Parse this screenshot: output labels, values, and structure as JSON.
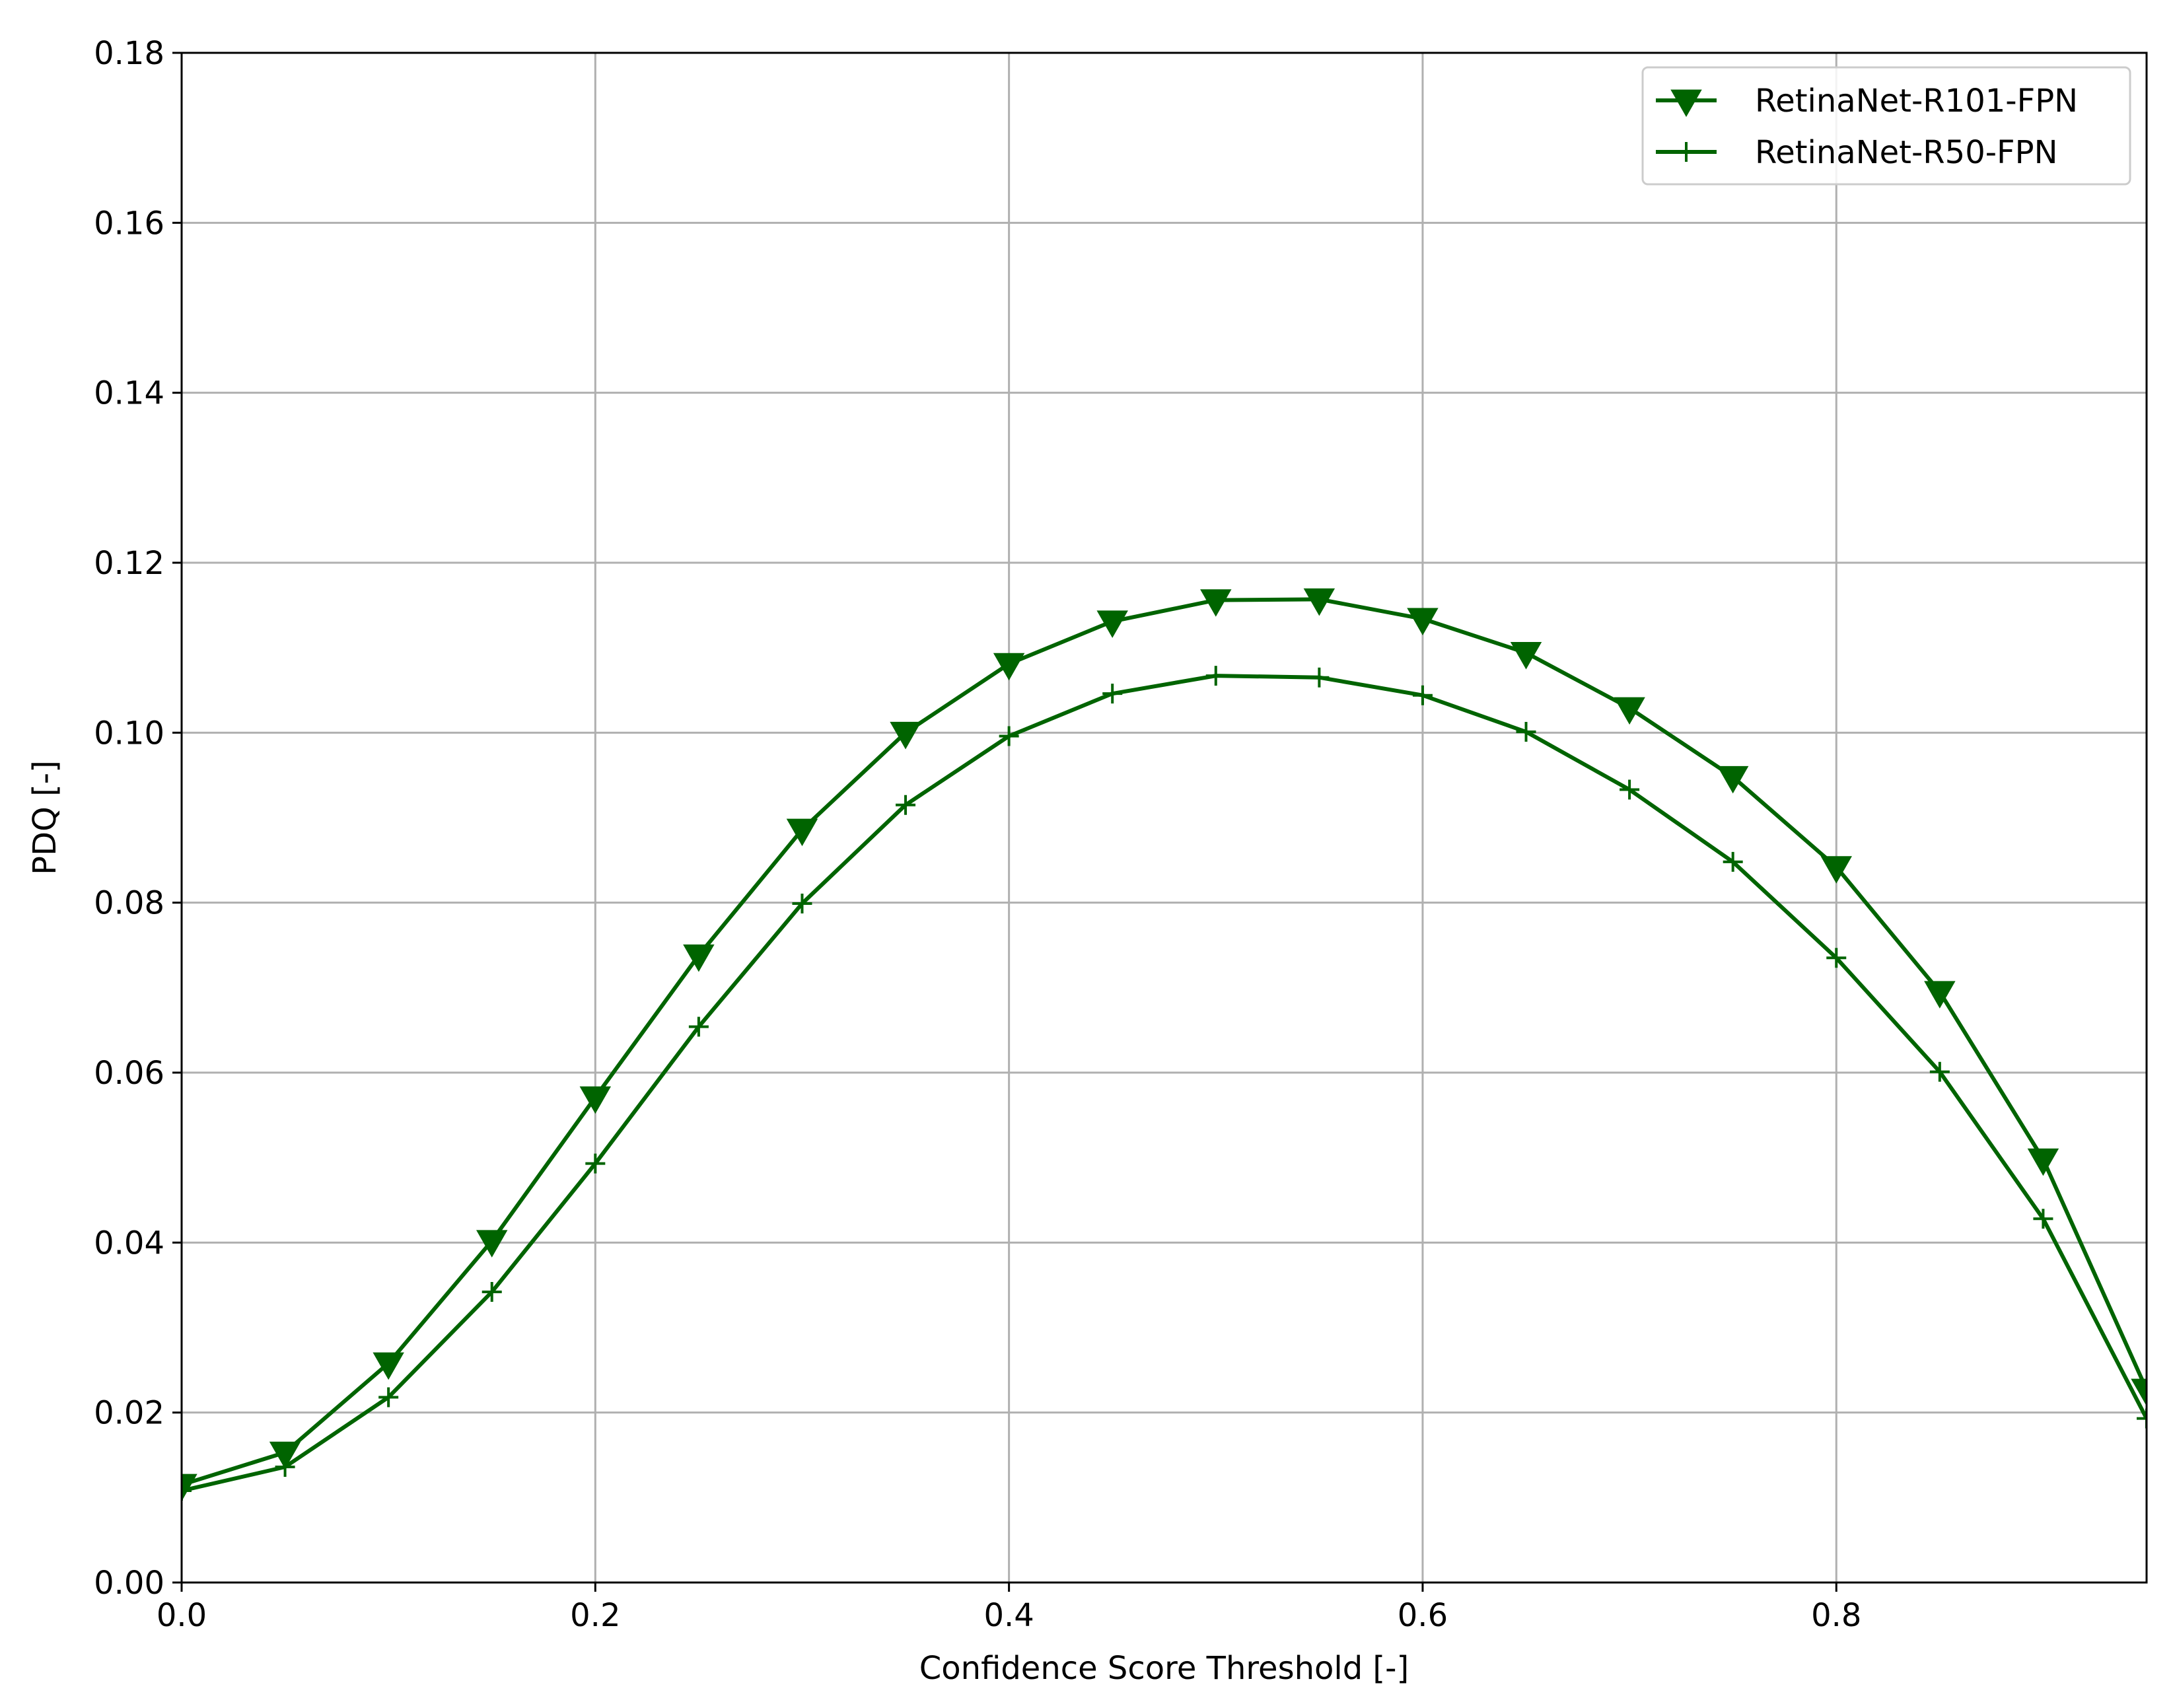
{
  "chart_data": {
    "type": "line",
    "title": "",
    "xlabel": "Confidence Score Threshold [-]",
    "ylabel": "PDQ [-]",
    "xlim": [
      0.0,
      0.95
    ],
    "ylim": [
      0.0,
      0.18
    ],
    "xticks": [
      "0.0",
      "0.2",
      "0.4",
      "0.6",
      "0.8"
    ],
    "yticks": [
      "0.00",
      "0.02",
      "0.04",
      "0.06",
      "0.08",
      "0.10",
      "0.12",
      "0.14",
      "0.16",
      "0.18"
    ],
    "grid": true,
    "legend_position": "top-right",
    "x": [
      0.0,
      0.05,
      0.1,
      0.15,
      0.2,
      0.25,
      0.3,
      0.35,
      0.4,
      0.45,
      0.5,
      0.55,
      0.6,
      0.65,
      0.7,
      0.75,
      0.8,
      0.85,
      0.9,
      0.95
    ],
    "series": [
      {
        "name": "RetinaNet-R101-FPN",
        "marker": "triangle-down",
        "color": "#006400",
        "values": [
          0.0115,
          0.0153,
          0.0258,
          0.0402,
          0.0571,
          0.0738,
          0.0886,
          0.1,
          0.1081,
          0.1131,
          0.1156,
          0.1157,
          0.1134,
          0.1094,
          0.1029,
          0.0948,
          0.0842,
          0.0695,
          0.0498,
          0.0227
        ]
      },
      {
        "name": "RetinaNet-R50-FPN",
        "marker": "plus",
        "color": "#006400",
        "values": [
          0.0108,
          0.0136,
          0.0218,
          0.0342,
          0.0493,
          0.0654,
          0.0799,
          0.0915,
          0.0996,
          0.1046,
          0.1067,
          0.1065,
          0.1044,
          0.1001,
          0.0933,
          0.0848,
          0.0735,
          0.0601,
          0.0428,
          0.0193
        ]
      }
    ]
  }
}
